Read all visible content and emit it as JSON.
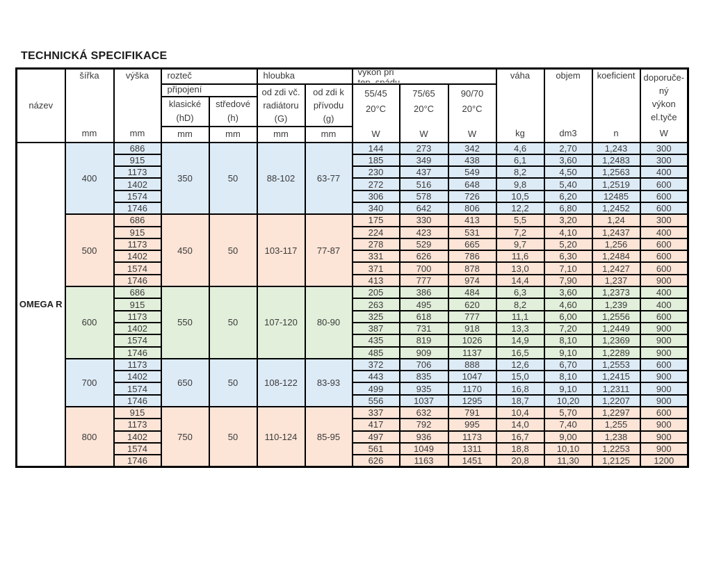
{
  "page_title": "TECHNICKÁ SPECIFIKACE",
  "colors": {
    "blue": "#DDEBF7",
    "peach": "#FCE4D6",
    "green": "#E2EFDA",
    "border": "#000000",
    "text": "#3a3a3a"
  },
  "table": {
    "product_name": "OMEGA R",
    "headers": {
      "nazev": "název",
      "sirka": "šířka",
      "vyska": "výška",
      "roztec": "rozteč",
      "pripojeni": "připojení",
      "klasicke_l1": "klasické",
      "klasicke_l2": "(hD)",
      "stredove_l1": "středové",
      "stredove_l2": "(h)",
      "hloubka": "hloubka",
      "od_zdi_g_l1": "od zdi  vč.",
      "od_zdi_g_l2": "radiátoru",
      "od_zdi_g_l3": "(G)",
      "od_zdi_k_l1": "od zdi  k",
      "od_zdi_k_l2": "přívodu",
      "od_zdi_k_l3": "(g)",
      "vykon_l1": "výkon při",
      "vykon_l2": "tep.  spádu",
      "t5545": "55/45",
      "t7565": "75/65",
      "t9070": "90/70",
      "temp": "20°C",
      "vaha": "váha",
      "objem": "objem",
      "koeficient": "koeficient",
      "dopor_l1": "doporuče-",
      "dopor_l2": "ný",
      "dopor_l3": "výkon",
      "dopor_l4": "el.tyče",
      "unit_mm": "mm",
      "unit_w": "W",
      "unit_kg": "kg",
      "unit_dm3": "dm3",
      "unit_n": "n"
    },
    "groups": [
      {
        "sirka": "400",
        "color": "blue",
        "klasicke": "350",
        "stredove": "50",
        "hloubka_g": "88-102",
        "hloubka_g2": "63-77",
        "rows": [
          {
            "vyska": "686",
            "w5545": "144",
            "w7565": "273",
            "w9070": "342",
            "vaha": "4,6",
            "objem": "2,70",
            "koef": "1,243",
            "el": "300"
          },
          {
            "vyska": "915",
            "w5545": "185",
            "w7565": "349",
            "w9070": "438",
            "vaha": "6,1",
            "objem": "3,60",
            "koef": "1,2483",
            "el": "300"
          },
          {
            "vyska": "1173",
            "w5545": "230",
            "w7565": "437",
            "w9070": "549",
            "vaha": "8,2",
            "objem": "4,50",
            "koef": "1,2563",
            "el": "400"
          },
          {
            "vyska": "1402",
            "w5545": "272",
            "w7565": "516",
            "w9070": "648",
            "vaha": "9,8",
            "objem": "5,40",
            "koef": "1,2519",
            "el": "600"
          },
          {
            "vyska": "1574",
            "w5545": "306",
            "w7565": "578",
            "w9070": "726",
            "vaha": "10,5",
            "objem": "6,20",
            "koef": "12485",
            "el": "600"
          },
          {
            "vyska": "1746",
            "w5545": "340",
            "w7565": "642",
            "w9070": "806",
            "vaha": "12,2",
            "objem": "6,80",
            "koef": "1,2452",
            "el": "600"
          }
        ]
      },
      {
        "sirka": "500",
        "color": "peach",
        "klasicke": "450",
        "stredove": "50",
        "hloubka_g": "103-117",
        "hloubka_g2": "77-87",
        "rows": [
          {
            "vyska": "686",
            "w5545": "175",
            "w7565": "330",
            "w9070": "413",
            "vaha": "5,5",
            "objem": "3,20",
            "koef": "1,24",
            "el": "300"
          },
          {
            "vyska": "915",
            "w5545": "224",
            "w7565": "423",
            "w9070": "531",
            "vaha": "7,2",
            "objem": "4,10",
            "koef": "1,2437",
            "el": "400"
          },
          {
            "vyska": "1173",
            "w5545": "278",
            "w7565": "529",
            "w9070": "665",
            "vaha": "9,7",
            "objem": "5,20",
            "koef": "1,256",
            "el": "600"
          },
          {
            "vyska": "1402",
            "w5545": "331",
            "w7565": "626",
            "w9070": "786",
            "vaha": "11,6",
            "objem": "6,30",
            "koef": "1,2484",
            "el": "600"
          },
          {
            "vyska": "1574",
            "w5545": "371",
            "w7565": "700",
            "w9070": "878",
            "vaha": "13,0",
            "objem": "7,10",
            "koef": "1,2427",
            "el": "600"
          },
          {
            "vyska": "1746",
            "w5545": "413",
            "w7565": "777",
            "w9070": "974",
            "vaha": "14,4",
            "objem": "7,90",
            "koef": "1,237",
            "el": "900"
          }
        ]
      },
      {
        "sirka": "600",
        "color": "green",
        "klasicke": "550",
        "stredove": "50",
        "hloubka_g": "107-120",
        "hloubka_g2": "80-90",
        "rows": [
          {
            "vyska": "686",
            "w5545": "205",
            "w7565": "386",
            "w9070": "484",
            "vaha": "6,3",
            "objem": "3,60",
            "koef": "1,2373",
            "el": "400"
          },
          {
            "vyska": "915",
            "w5545": "263",
            "w7565": "495",
            "w9070": "620",
            "vaha": "8,2",
            "objem": "4,60",
            "koef": "1,239",
            "el": "400"
          },
          {
            "vyska": "1173",
            "w5545": "325",
            "w7565": "618",
            "w9070": "777",
            "vaha": "11,1",
            "objem": "6,00",
            "koef": "1,2556",
            "el": "600"
          },
          {
            "vyska": "1402",
            "w5545": "387",
            "w7565": "731",
            "w9070": "918",
            "vaha": "13,3",
            "objem": "7,20",
            "koef": "1,2449",
            "el": "900"
          },
          {
            "vyska": "1574",
            "w5545": "435",
            "w7565": "819",
            "w9070": "1026",
            "vaha": "14,9",
            "objem": "8,10",
            "koef": "1,2369",
            "el": "900"
          },
          {
            "vyska": "1746",
            "w5545": "485",
            "w7565": "909",
            "w9070": "1137",
            "vaha": "16,5",
            "objem": "9,10",
            "koef": "1,2289",
            "el": "900"
          }
        ]
      },
      {
        "sirka": "700",
        "color": "blue",
        "klasicke": "650",
        "stredove": "50",
        "hloubka_g": "108-122",
        "hloubka_g2": "83-93",
        "rows": [
          {
            "vyska": "1173",
            "w5545": "372",
            "w7565": "706",
            "w9070": "888",
            "vaha": "12,6",
            "objem": "6,70",
            "koef": "1,2553",
            "el": "600"
          },
          {
            "vyska": "1402",
            "w5545": "443",
            "w7565": "835",
            "w9070": "1047",
            "vaha": "15,0",
            "objem": "8,10",
            "koef": "1,2415",
            "el": "900"
          },
          {
            "vyska": "1574",
            "w5545": "499",
            "w7565": "935",
            "w9070": "1170",
            "vaha": "16,8",
            "objem": "9,10",
            "koef": "1,2311",
            "el": "900"
          },
          {
            "vyska": "1746",
            "w5545": "556",
            "w7565": "1037",
            "w9070": "1295",
            "vaha": "18,7",
            "objem": "10,20",
            "koef": "1,2207",
            "el": "900"
          }
        ]
      },
      {
        "sirka": "800",
        "color": "peach",
        "klasicke": "750",
        "stredove": "50",
        "hloubka_g": "110-124",
        "hloubka_g2": "85-95",
        "rows": [
          {
            "vyska": "915",
            "w5545": "337",
            "w7565": "632",
            "w9070": "791",
            "vaha": "10,4",
            "objem": "5,70",
            "koef": "1,2297",
            "el": "600"
          },
          {
            "vyska": "1173",
            "w5545": "417",
            "w7565": "792",
            "w9070": "995",
            "vaha": "14,0",
            "objem": "7,40",
            "koef": "1,255",
            "el": "900"
          },
          {
            "vyska": "1402",
            "w5545": "497",
            "w7565": "936",
            "w9070": "1173",
            "vaha": "16,7",
            "objem": "9,00",
            "koef": "1,238",
            "el": "900"
          },
          {
            "vyska": "1574",
            "w5545": "561",
            "w7565": "1049",
            "w9070": "1311",
            "vaha": "18,8",
            "objem": "10,10",
            "koef": "1,2253",
            "el": "900"
          },
          {
            "vyska": "1746",
            "w5545": "626",
            "w7565": "1163",
            "w9070": "1451",
            "vaha": "20,8",
            "objem": "11,30",
            "koef": "1,2125",
            "el": "1200"
          }
        ]
      }
    ]
  }
}
